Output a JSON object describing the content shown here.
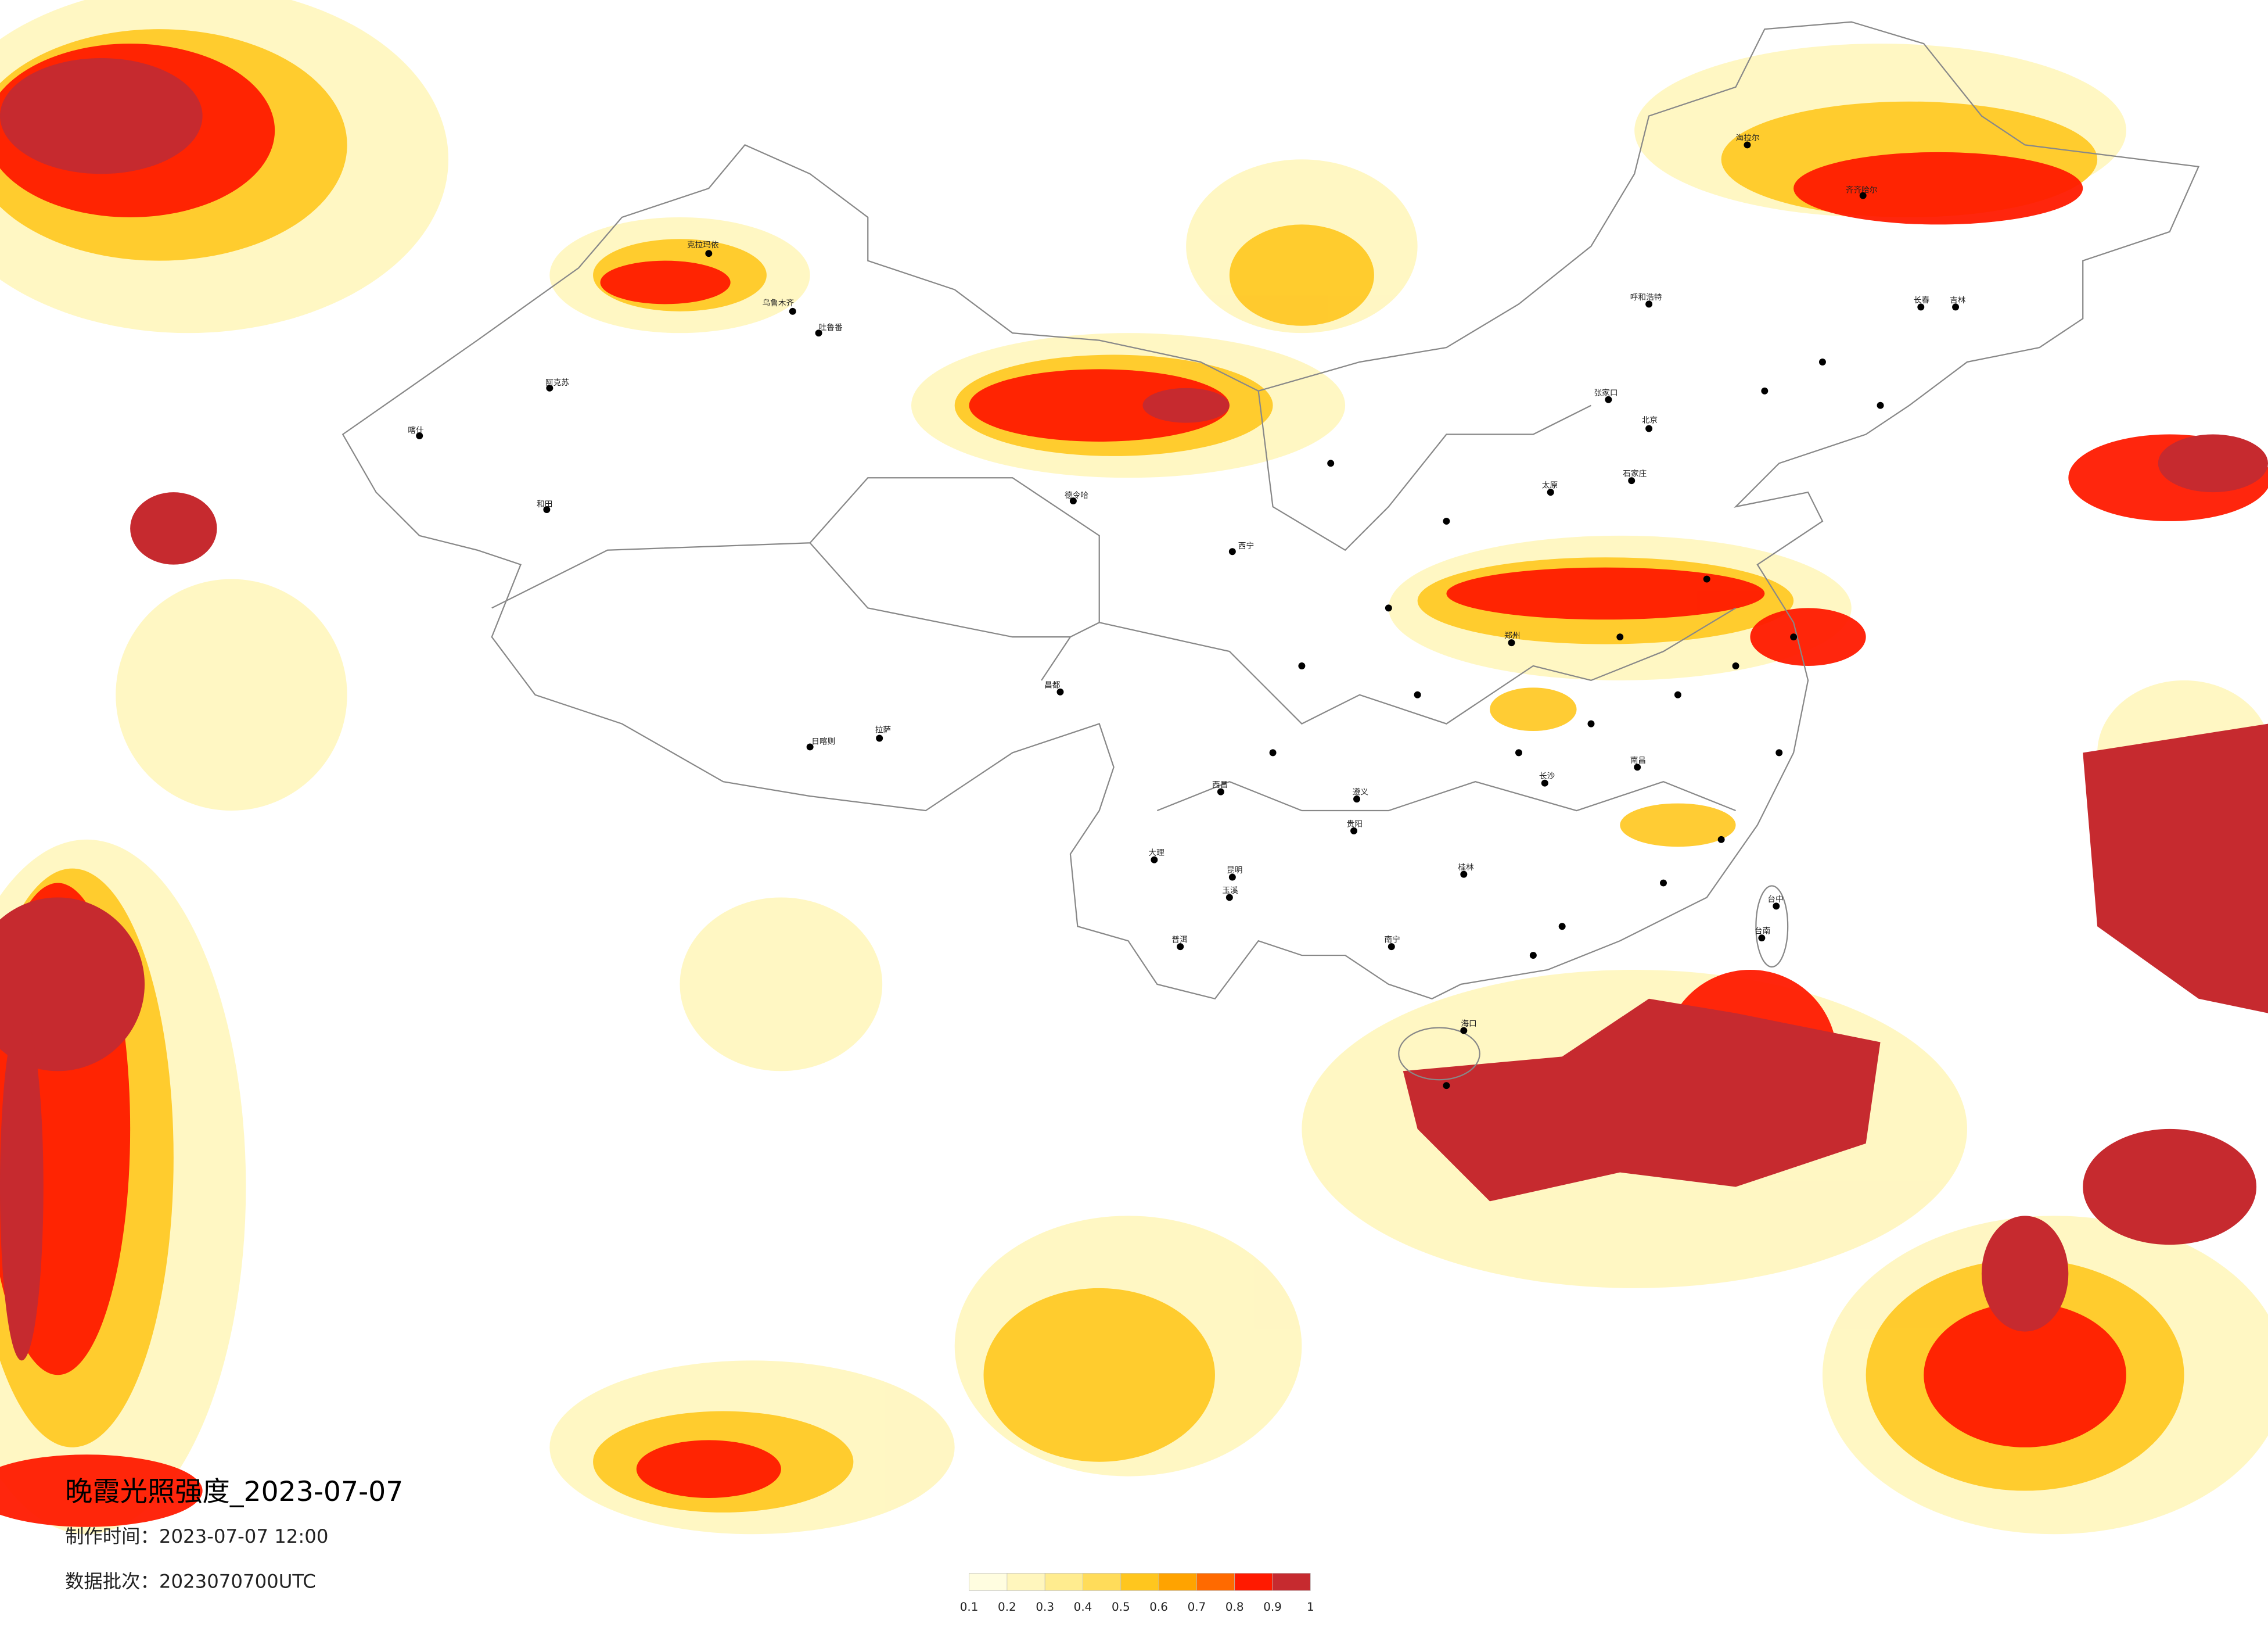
{
  "map": {
    "title": "晚霞光照强度_2023-07-07",
    "make_time": "制作时间：2023-07-07 12:00",
    "batch": "数据批次：2023070700UTC",
    "legend": {
      "ticks": [
        0.1,
        0.2,
        0.3,
        0.4,
        0.5,
        0.6,
        0.7,
        0.8,
        0.9,
        1
      ],
      "colors": [
        "#fffde0",
        "#fff6bd",
        "#ffec8f",
        "#ffdc5a",
        "#ffc61e",
        "#ffa300",
        "#ff6a00",
        "#ff1a00",
        "#c62a2f"
      ]
    },
    "cities": [
      "克拉玛依",
      "乌鲁木齐",
      "吐鲁番",
      "阿克苏",
      "和田",
      "喀什",
      "日喀则",
      "拉萨",
      "昌都",
      "西宁",
      "德令哈",
      "呼和浩特",
      "张家口",
      "北京",
      "石家庄",
      "太原",
      "郑州",
      "南昌",
      "长沙",
      "贵阳",
      "昆明",
      "南宁",
      "桂林",
      "海口",
      "西昌",
      "遵义",
      "大理",
      "普洱",
      "玉溪",
      "台中",
      "台南",
      "齐齐哈尔",
      "长春",
      "吉林",
      "海拉尔"
    ]
  }
}
